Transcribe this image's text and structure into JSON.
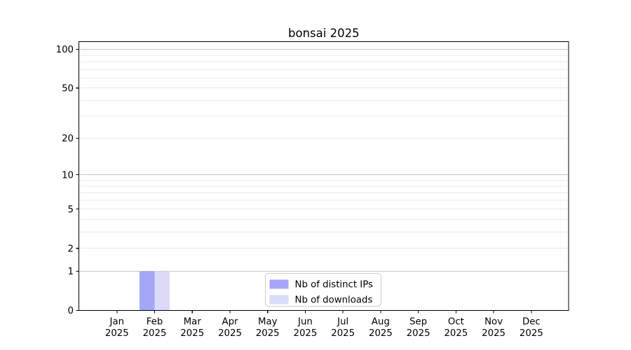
{
  "figure": {
    "background": "#ffffff"
  },
  "chart_data": {
    "type": "bar",
    "title": "bonsai 2025",
    "categories": [
      "Jan",
      "Feb",
      "Mar",
      "Apr",
      "May",
      "Jun",
      "Jul",
      "Aug",
      "Sep",
      "Oct",
      "Nov",
      "Dec"
    ],
    "year_label": "2025",
    "series": [
      {
        "name": "Nb of distinct IPs",
        "color": "#a6a6f7",
        "values": [
          0,
          1,
          0,
          0,
          0,
          0,
          0,
          0,
          0,
          0,
          0,
          0
        ]
      },
      {
        "name": "Nb of downloads",
        "color": "#dbdbf9",
        "values": [
          0,
          1,
          0,
          0,
          0,
          0,
          0,
          0,
          0,
          0,
          0,
          0
        ]
      }
    ],
    "xlabel": "",
    "ylabel": "",
    "yscale": "log10(1+x)",
    "ylim": [
      0,
      115
    ],
    "ytick_values": [
      0,
      1,
      2,
      5,
      10,
      20,
      50,
      100
    ],
    "major_gridline_values": [
      1,
      10,
      100
    ],
    "minor_gridline_values": [
      2,
      3,
      4,
      5,
      6,
      7,
      8,
      9,
      20,
      30,
      40,
      50,
      60,
      70,
      80,
      90
    ],
    "grid": true,
    "legend_position": "lower center inside",
    "colors": {
      "major_grid": "#c6c6c6",
      "minor_grid": "#e9e9e9",
      "axis": "#000000",
      "tick_label": "#000000",
      "legend_border": "#cccccc",
      "legend_background": "#ffffff"
    }
  },
  "legend": {
    "items": [
      {
        "label": "Nb of distinct IPs",
        "color": "#a6a6f7"
      },
      {
        "label": "Nb of downloads",
        "color": "#dbdbf9"
      }
    ]
  }
}
